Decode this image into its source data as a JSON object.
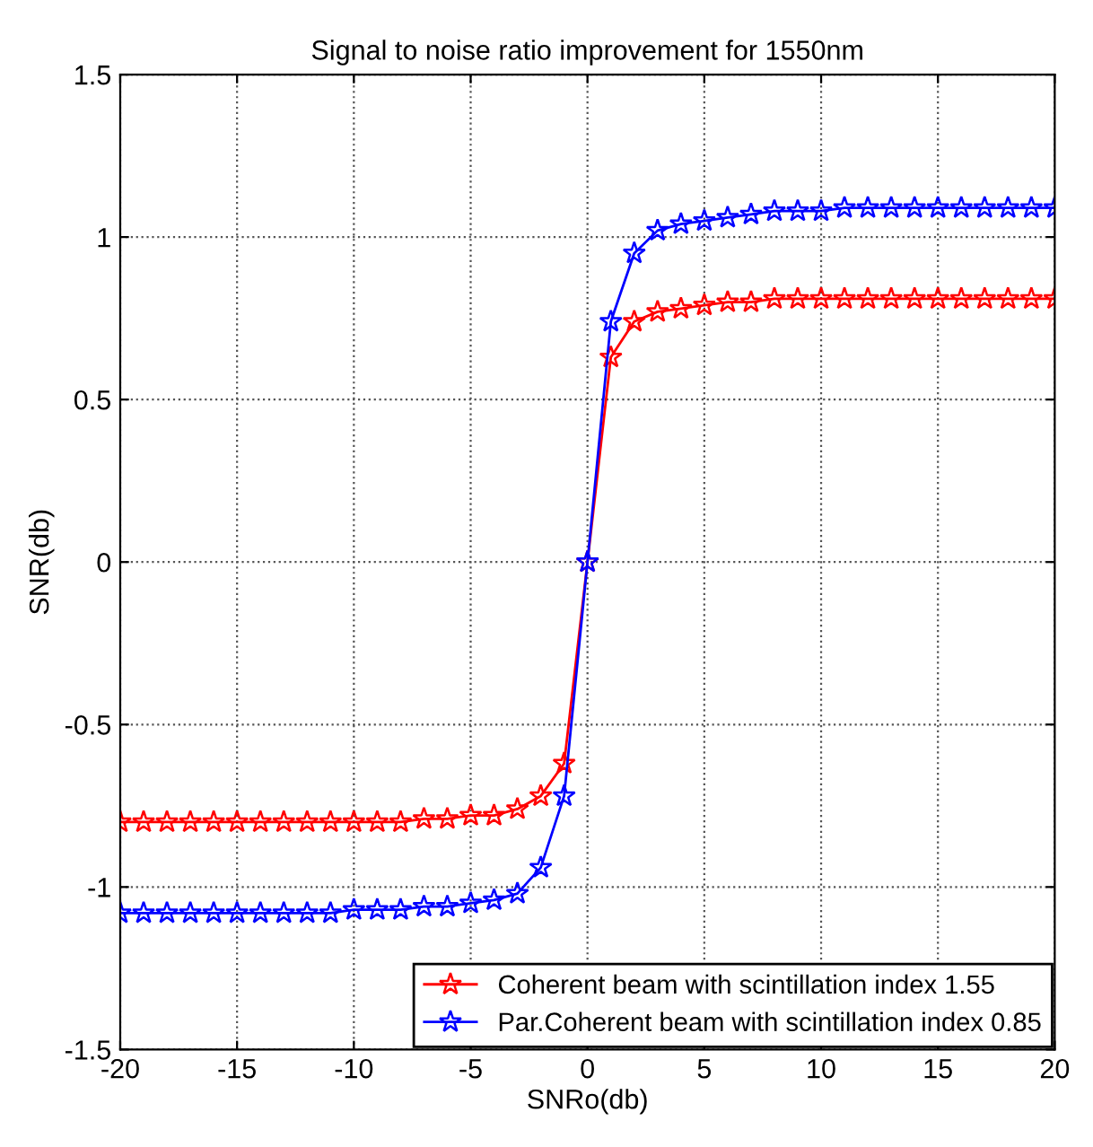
{
  "chart_data": {
    "type": "line",
    "title": "Signal to noise ratio improvement for 1550nm",
    "xlabel": "SNRo(db)",
    "ylabel": "SNR(db)",
    "x": [
      -20,
      -19,
      -18,
      -17,
      -16,
      -15,
      -14,
      -13,
      -12,
      -11,
      -10,
      -9,
      -8,
      -7,
      -6,
      -5,
      -4,
      -3,
      -2,
      -1,
      0,
      1,
      2,
      3,
      4,
      5,
      6,
      7,
      8,
      9,
      10,
      11,
      12,
      13,
      14,
      15,
      16,
      17,
      18,
      19,
      20
    ],
    "series": [
      {
        "name": "Coherent beam with scintillation index 1.55",
        "color": "#ff0000",
        "marker": "star",
        "values": [
          -0.8,
          -0.8,
          -0.8,
          -0.8,
          -0.8,
          -0.8,
          -0.8,
          -0.8,
          -0.8,
          -0.8,
          -0.8,
          -0.8,
          -0.8,
          -0.79,
          -0.79,
          -0.78,
          -0.78,
          -0.76,
          -0.72,
          -0.62,
          0,
          0.63,
          0.74,
          0.77,
          0.78,
          0.79,
          0.8,
          0.8,
          0.81,
          0.81,
          0.81,
          0.81,
          0.81,
          0.81,
          0.81,
          0.81,
          0.81,
          0.81,
          0.81,
          0.81,
          0.81
        ]
      },
      {
        "name": "Par.Coherent beam with scintillation index 0.85",
        "color": "#0000ff",
        "marker": "star",
        "values": [
          -1.08,
          -1.08,
          -1.08,
          -1.08,
          -1.08,
          -1.08,
          -1.08,
          -1.08,
          -1.08,
          -1.08,
          -1.07,
          -1.07,
          -1.07,
          -1.06,
          -1.06,
          -1.05,
          -1.04,
          -1.02,
          -0.94,
          -0.72,
          0,
          0.74,
          0.95,
          1.02,
          1.04,
          1.05,
          1.06,
          1.07,
          1.08,
          1.08,
          1.08,
          1.09,
          1.09,
          1.09,
          1.09,
          1.09,
          1.09,
          1.09,
          1.09,
          1.09,
          1.09
        ]
      }
    ],
    "xlim": [
      -20,
      20
    ],
    "xticks": [
      -20,
      -15,
      -10,
      -5,
      0,
      5,
      10,
      15,
      20
    ],
    "ylim": [
      -1.5,
      1.5
    ],
    "yticks": [
      -1.5,
      -1,
      -0.5,
      0,
      0.5,
      1,
      1.5
    ],
    "grid": true,
    "legend": "bottom right",
    "line_style": "solid"
  }
}
